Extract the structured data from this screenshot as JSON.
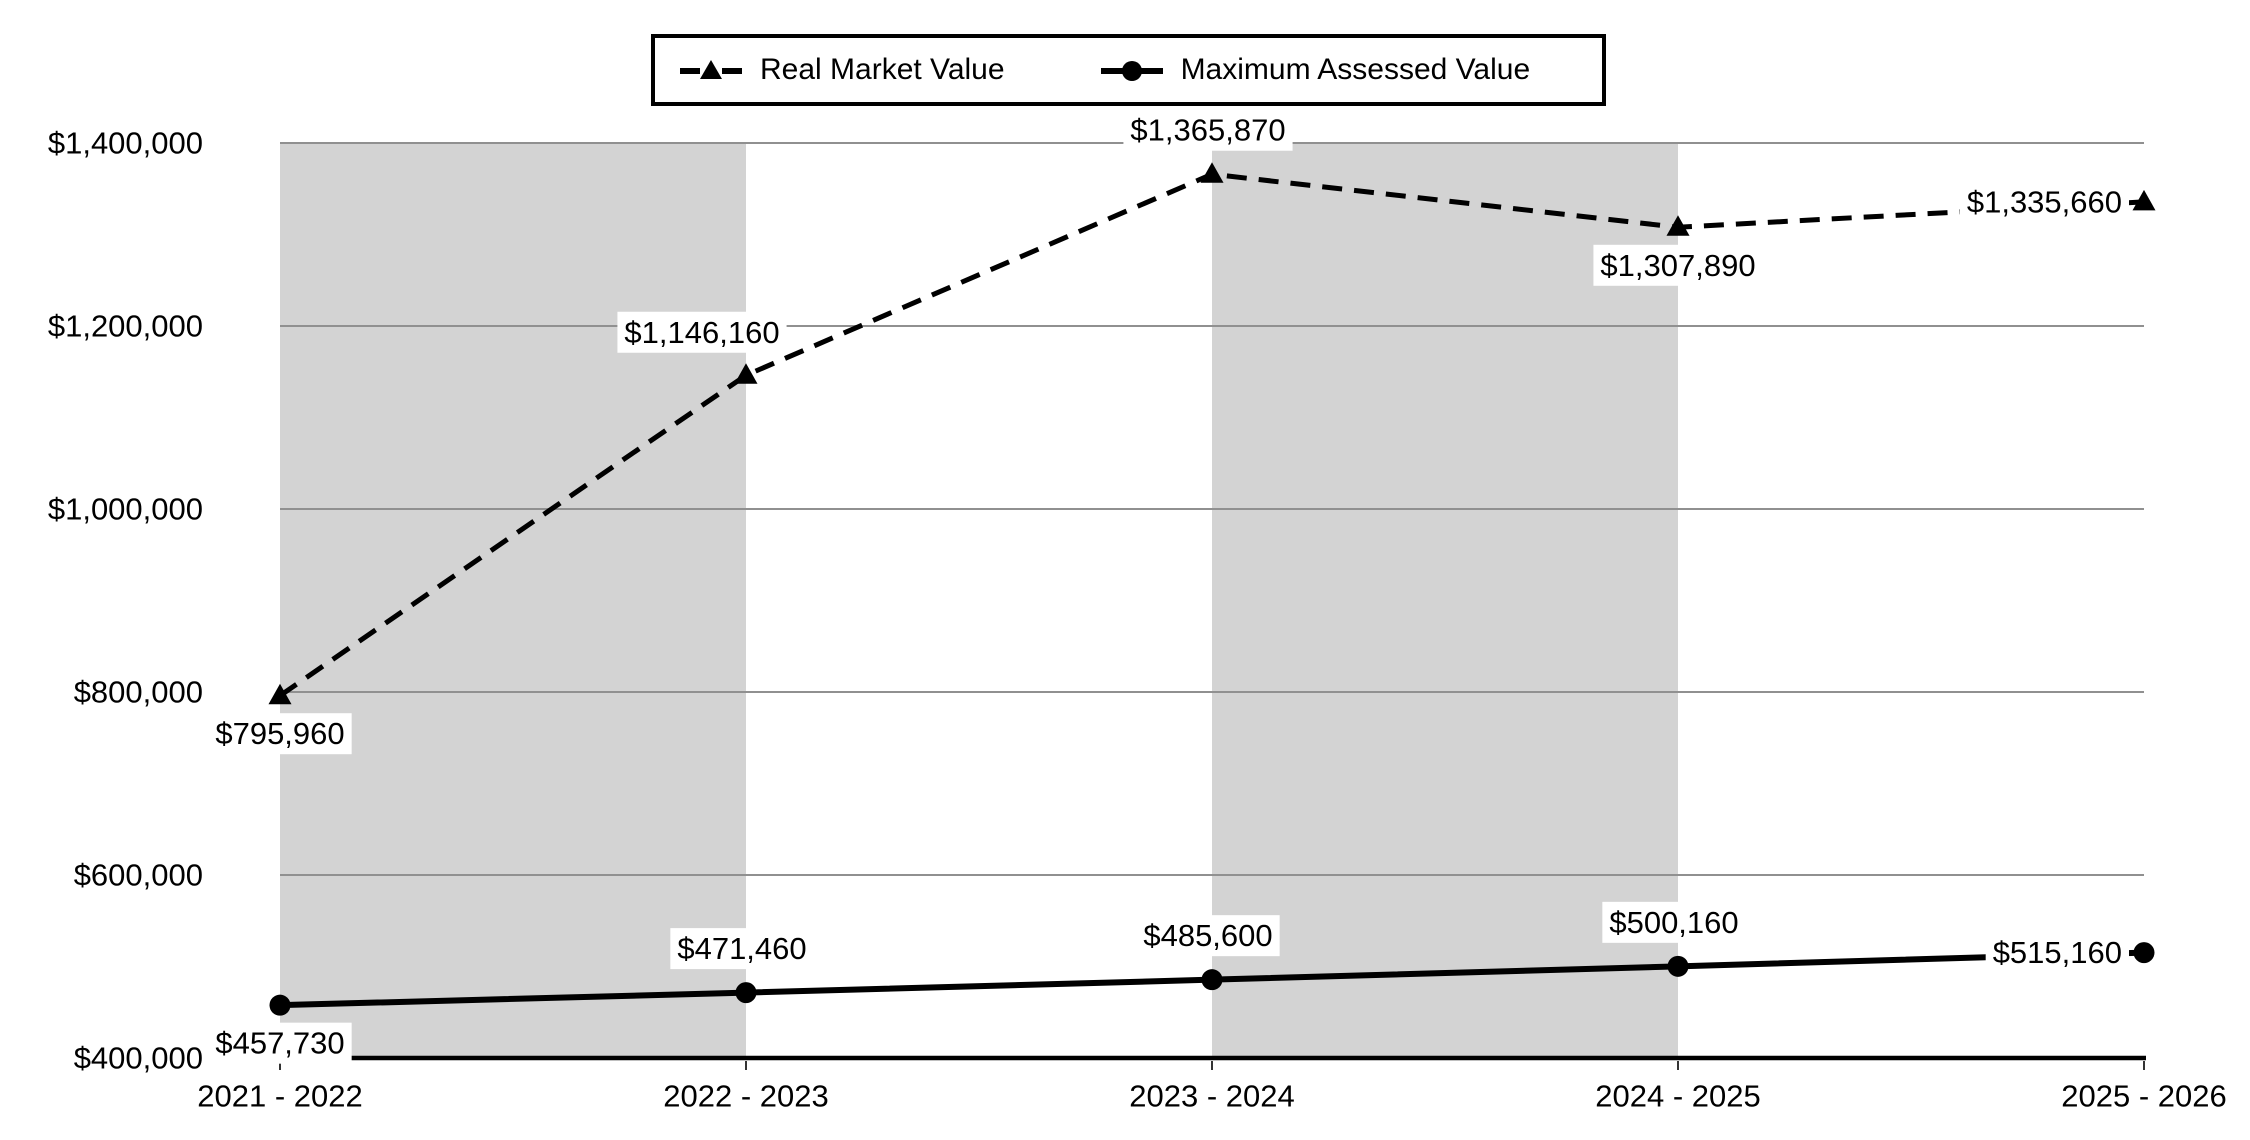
{
  "chart_data": {
    "type": "line",
    "categories": [
      "2021 - 2022",
      "2022 - 2023",
      "2023 - 2024",
      "2024 - 2025",
      "2025 - 2026"
    ],
    "series": [
      {
        "name": "Real Market Value",
        "values": [
          795960,
          1146160,
          1365870,
          1307890,
          1335660
        ],
        "data_labels": [
          "$795,960",
          "$1,146,160",
          "$1,365,870",
          "$1,307,890",
          "$1,335,660"
        ],
        "label_placements": [
          "below",
          "above-left",
          "above",
          "below",
          "left"
        ],
        "line_style": "dashed",
        "marker": "triangle",
        "color": "#000000"
      },
      {
        "name": "Maximum Assessed Value",
        "values": [
          457730,
          471460,
          485600,
          500160,
          515160
        ],
        "data_labels": [
          "$457,730",
          "$471,460",
          "$485,600",
          "$500,160",
          "$515,160"
        ],
        "label_placements": [
          "below",
          "above",
          "above",
          "above",
          "left"
        ],
        "line_style": "solid",
        "marker": "circle",
        "color": "#000000"
      }
    ],
    "ylim": [
      400000,
      1400000
    ],
    "y_ticks": {
      "values": [
        400000,
        600000,
        800000,
        1000000,
        1200000,
        1400000
      ],
      "labels": [
        "$400,000",
        "$600,000",
        "$800,000",
        "$1,000,000",
        "$1,200,000",
        "$1,400,000"
      ]
    },
    "grid": true,
    "legend_position": "top",
    "shaded_columns": [
      [
        0,
        1
      ],
      [
        2,
        3
      ]
    ],
    "colors": {
      "band": "#d3d3d3",
      "gridline": "#909090",
      "axis": "#000000",
      "tick": "#333333",
      "text": "#000000",
      "label_bg": "#ffffff",
      "legend_border": "#000000",
      "series": "#000000"
    }
  }
}
